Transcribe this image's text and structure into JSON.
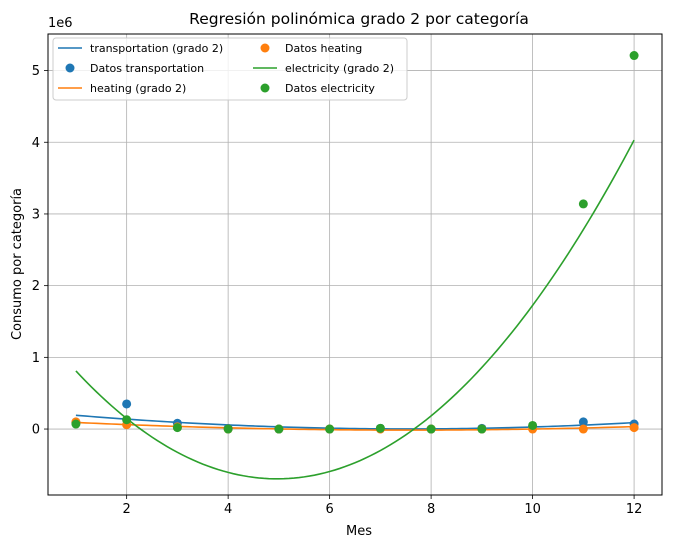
{
  "chart_data": {
    "type": "scatter",
    "title": "Regresión polinómica grado 2 por categoría",
    "xlabel": "Mes",
    "ylabel": "Consumo por categoría",
    "offset_text": "1e6",
    "xlim": [
      0.45,
      12.55
    ],
    "ylim": [
      -0.92,
      5.51
    ],
    "xticks": [
      2,
      4,
      6,
      8,
      10,
      12
    ],
    "yticks": [
      0,
      1,
      2,
      3,
      4,
      5
    ],
    "grid": true,
    "legend_position": "top-left",
    "legend_columns": 2,
    "series": [
      {
        "name": "transportation",
        "color": "#1f77b4",
        "fit_label": "transportation (grado 2)",
        "scatter_label": "Datos transportation",
        "x": [
          1,
          2,
          3,
          4,
          5,
          6,
          7,
          8,
          9,
          10,
          11,
          12
        ],
        "y": [
          0.09,
          0.35,
          0.08,
          0.01,
          0.0,
          0.0,
          0.01,
          0.0,
          0.01,
          0.03,
          0.1,
          0.07
        ],
        "fit": [
          0.192,
          0.143,
          0.101,
          0.067,
          0.038,
          0.017,
          0.003,
          -0.004,
          0.0,
          0.025,
          0.06,
          0.09
        ]
      },
      {
        "name": "heating",
        "color": "#ff7f0e",
        "fit_label": "heating (grado 2)",
        "scatter_label": "Datos heating",
        "x": [
          1,
          2,
          3,
          4,
          5,
          6,
          7,
          8,
          9,
          10,
          11,
          12
        ],
        "y": [
          0.1,
          0.06,
          0.03,
          0.0,
          0.0,
          0.0,
          0.0,
          0.0,
          0.0,
          0.0,
          0.0,
          0.02
        ],
        "fit": [
          0.092,
          0.06,
          0.034,
          0.014,
          0.0,
          -0.01,
          -0.014,
          -0.013,
          -0.008,
          0.001,
          0.015,
          0.034
        ]
      },
      {
        "name": "electricity",
        "color": "#2ca02c",
        "fit_label": "electricity (grado 2)",
        "scatter_label": "Datos electricity",
        "x": [
          1,
          2,
          3,
          4,
          5,
          6,
          7,
          8,
          9,
          10,
          11,
          12
        ],
        "y": [
          0.07,
          0.13,
          0.02,
          0.0,
          0.0,
          0.0,
          0.01,
          0.0,
          0.0,
          0.05,
          3.14,
          5.21
        ],
        "fit": [
          0.81,
          0.11,
          -0.32,
          -0.54,
          -0.63,
          -0.54,
          -0.3,
          0.14,
          0.83,
          1.72,
          2.79,
          4.03
        ]
      }
    ]
  }
}
